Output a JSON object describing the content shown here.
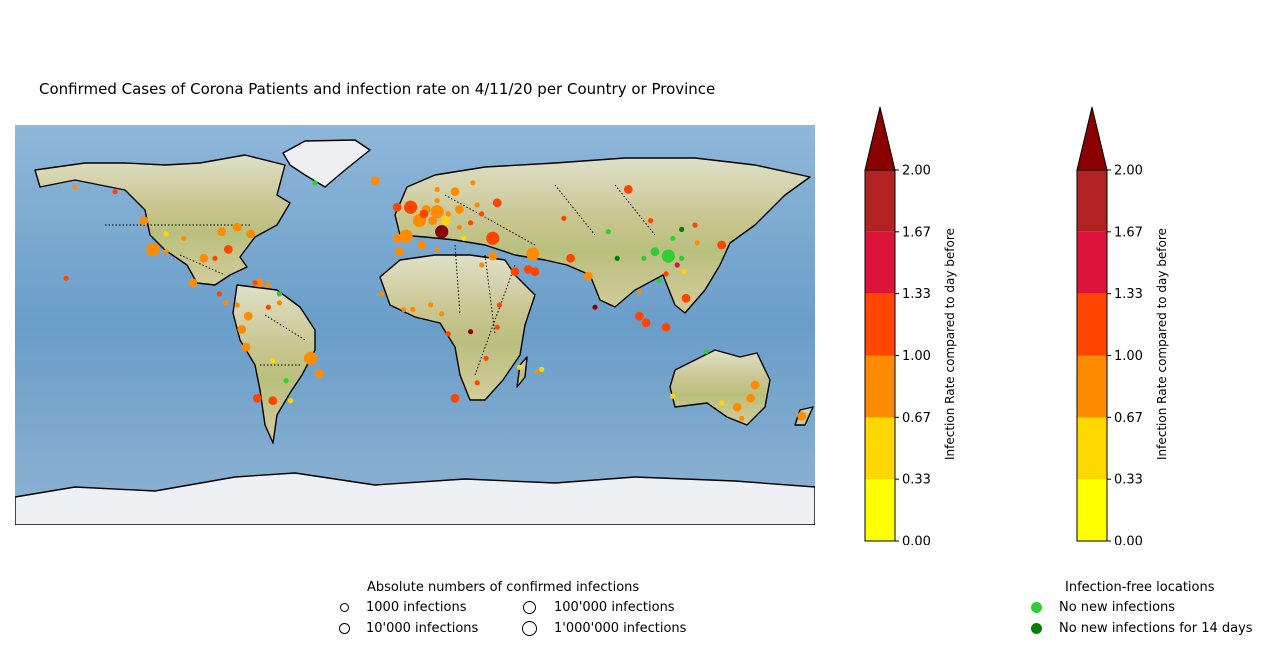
{
  "title": "Confirmed Cases of Corona Patients and infection rate on 4/11/20 per Country or Province",
  "chart_data": {
    "type": "scatter",
    "projection": "equirectangular",
    "xlim": [
      -180,
      180
    ],
    "ylim": [
      -90,
      90
    ],
    "basemap": "stock image with coastlines and dotted country borders",
    "colorbar": {
      "label": "Infection Rate compared to day before",
      "ticks": [
        "0.00",
        "0.33",
        "0.67",
        "1.00",
        "1.33",
        "1.67",
        "2.00"
      ],
      "range": [
        0,
        2
      ],
      "extend": "max",
      "colors": [
        "#ffff00",
        "#ffd700",
        "#ff8c00",
        "#ff4500",
        "#dc143c",
        "#b22222",
        "#8b0000"
      ]
    },
    "colorbar_count": 2,
    "points": [
      {
        "lon": -118,
        "lat": 34,
        "size": "large",
        "color": "#ff8c00"
      },
      {
        "lon": -74,
        "lat": 41,
        "size": "medium",
        "color": "#ff8c00"
      },
      {
        "lon": -87,
        "lat": 42,
        "size": "medium",
        "color": "#ff8c00"
      },
      {
        "lon": -122,
        "lat": 47,
        "size": "medium",
        "color": "#ff8c00"
      },
      {
        "lon": -80,
        "lat": 44,
        "size": "medium",
        "color": "#ff8c00"
      },
      {
        "lon": -95,
        "lat": 30,
        "size": "medium",
        "color": "#ff8c00"
      },
      {
        "lon": -84,
        "lat": 34,
        "size": "medium",
        "color": "#ff4500"
      },
      {
        "lon": -90,
        "lat": 30,
        "size": "small",
        "color": "#ff4500"
      },
      {
        "lon": -104,
        "lat": 39,
        "size": "small",
        "color": "#ff8c00"
      },
      {
        "lon": -112,
        "lat": 33,
        "size": "small",
        "color": "#ff8c00"
      },
      {
        "lon": -112,
        "lat": 41,
        "size": "small",
        "color": "#ffd700"
      },
      {
        "lon": -100,
        "lat": 19,
        "size": "medium",
        "color": "#ff8c00"
      },
      {
        "lon": -66,
        "lat": 18,
        "size": "small",
        "color": "#ff8c00"
      },
      {
        "lon": -70,
        "lat": 19,
        "size": "medium",
        "color": "#ff8c00"
      },
      {
        "lon": -75,
        "lat": 4,
        "size": "medium",
        "color": "#ff8c00"
      },
      {
        "lon": -78,
        "lat": -2,
        "size": "medium",
        "color": "#ff8c00"
      },
      {
        "lon": -76,
        "lat": -10,
        "size": "medium",
        "color": "#ff8c00"
      },
      {
        "lon": -66,
        "lat": 8,
        "size": "small",
        "color": "#ff4500"
      },
      {
        "lon": -47,
        "lat": -15,
        "size": "large",
        "color": "#ff8c00"
      },
      {
        "lon": -43,
        "lat": -22,
        "size": "medium",
        "color": "#ff8c00"
      },
      {
        "lon": -64,
        "lat": -34,
        "size": "medium",
        "color": "#ff4500"
      },
      {
        "lon": -71,
        "lat": -33,
        "size": "medium",
        "color": "#ff4500"
      },
      {
        "lon": -56,
        "lat": -34,
        "size": "small",
        "color": "#ffd700"
      },
      {
        "lon": -64,
        "lat": -16,
        "size": "small",
        "color": "#ffd700"
      },
      {
        "lon": -58,
        "lat": -25,
        "size": "small",
        "color": "#32cd32"
      },
      {
        "lon": -85,
        "lat": 10,
        "size": "small",
        "color": "#ff8c00"
      },
      {
        "lon": -88,
        "lat": 14,
        "size": "small",
        "color": "#ff4500"
      },
      {
        "lon": -80,
        "lat": 9,
        "size": "small",
        "color": "#ff8c00"
      },
      {
        "lon": -61,
        "lat": 14,
        "size": "small",
        "color": "#32cd32"
      },
      {
        "lon": -153,
        "lat": 62,
        "size": "small",
        "color": "#ff8c00"
      },
      {
        "lon": -135,
        "lat": 60,
        "size": "small",
        "color": "#ff4500"
      },
      {
        "lon": -45,
        "lat": 64,
        "size": "small",
        "color": "#32cd32"
      },
      {
        "lon": -18,
        "lat": 65,
        "size": "medium",
        "color": "#ff8c00"
      },
      {
        "lon": -4,
        "lat": 40,
        "size": "large",
        "color": "#ff8c00"
      },
      {
        "lon": 12,
        "lat": 42,
        "size": "large",
        "color": "#8b0000"
      },
      {
        "lon": 2,
        "lat": 47,
        "size": "large",
        "color": "#ff8c00"
      },
      {
        "lon": 10,
        "lat": 51,
        "size": "large",
        "color": "#ff8c00"
      },
      {
        "lon": -2,
        "lat": 53,
        "size": "large",
        "color": "#ff4500"
      },
      {
        "lon": 5,
        "lat": 52,
        "size": "medium",
        "color": "#ff8c00"
      },
      {
        "lon": 8,
        "lat": 47,
        "size": "medium",
        "color": "#ff8c00"
      },
      {
        "lon": 4,
        "lat": 50,
        "size": "medium",
        "color": "#ff4500"
      },
      {
        "lon": 14,
        "lat": 47,
        "size": "medium",
        "color": "#ffd700"
      },
      {
        "lon": 18,
        "lat": 60,
        "size": "medium",
        "color": "#ff8c00"
      },
      {
        "lon": 10,
        "lat": 61,
        "size": "small",
        "color": "#ff8c00"
      },
      {
        "lon": 26,
        "lat": 64,
        "size": "small",
        "color": "#ff8c00"
      },
      {
        "lon": 10,
        "lat": 56,
        "size": "small",
        "color": "#ff8c00"
      },
      {
        "lon": 20,
        "lat": 52,
        "size": "medium",
        "color": "#ff8c00"
      },
      {
        "lon": 15,
        "lat": 50,
        "size": "small",
        "color": "#ff8c00"
      },
      {
        "lon": -8,
        "lat": 39,
        "size": "medium",
        "color": "#ff8c00"
      },
      {
        "lon": -8,
        "lat": 53,
        "size": "medium",
        "color": "#ff4500"
      },
      {
        "lon": 25,
        "lat": 46,
        "size": "small",
        "color": "#ff4500"
      },
      {
        "lon": 22,
        "lat": 39,
        "size": "small",
        "color": "#ffd700"
      },
      {
        "lon": 20,
        "lat": 44,
        "size": "small",
        "color": "#ff8c00"
      },
      {
        "lon": 35,
        "lat": 39,
        "size": "large",
        "color": "#ff4500"
      },
      {
        "lon": 37,
        "lat": 55,
        "size": "medium",
        "color": "#ff4500"
      },
      {
        "lon": 30,
        "lat": 50,
        "size": "small",
        "color": "#ff4500"
      },
      {
        "lon": 28,
        "lat": 54,
        "size": "small",
        "color": "#ff8c00"
      },
      {
        "lon": 53,
        "lat": 32,
        "size": "large",
        "color": "#ff8c00"
      },
      {
        "lon": 45,
        "lat": 24,
        "size": "medium",
        "color": "#ff4500"
      },
      {
        "lon": 54,
        "lat": 24,
        "size": "medium",
        "color": "#ff4500"
      },
      {
        "lon": 51,
        "lat": 25,
        "size": "medium",
        "color": "#ff4500"
      },
      {
        "lon": 35,
        "lat": 31,
        "size": "medium",
        "color": "#ff8c00"
      },
      {
        "lon": 30,
        "lat": 27,
        "size": "small",
        "color": "#ff8c00"
      },
      {
        "lon": 70,
        "lat": 30,
        "size": "medium",
        "color": "#ff4500"
      },
      {
        "lon": 78,
        "lat": 22,
        "size": "medium",
        "color": "#ff8c00"
      },
      {
        "lon": 67,
        "lat": 48,
        "size": "small",
        "color": "#ff4500"
      },
      {
        "lon": 96,
        "lat": 61,
        "size": "medium",
        "color": "#ff4500"
      },
      {
        "lon": 81,
        "lat": 8,
        "size": "small",
        "color": "#8b0000"
      },
      {
        "lon": 101,
        "lat": 4,
        "size": "medium",
        "color": "#ff4500"
      },
      {
        "lon": 104,
        "lat": 1,
        "size": "medium",
        "color": "#ff4500"
      },
      {
        "lon": 101,
        "lat": 15,
        "size": "small",
        "color": "#ff8c00"
      },
      {
        "lon": 113,
        "lat": -1,
        "size": "medium",
        "color": "#ff4500"
      },
      {
        "lon": 122,
        "lat": 12,
        "size": "medium",
        "color": "#ff4500"
      },
      {
        "lon": 138,
        "lat": 36,
        "size": "medium",
        "color": "#ff4500"
      },
      {
        "lon": 127,
        "lat": 37,
        "size": "small",
        "color": "#ff8c00"
      },
      {
        "lon": 121,
        "lat": 24,
        "size": "small",
        "color": "#ffd700"
      },
      {
        "lon": 114,
        "lat": 31,
        "size": "large",
        "color": "#32cd32"
      },
      {
        "lon": 108,
        "lat": 33,
        "size": "medium",
        "color": "#32cd32"
      },
      {
        "lon": 116,
        "lat": 39,
        "size": "small",
        "color": "#32cd32"
      },
      {
        "lon": 120,
        "lat": 30,
        "size": "small",
        "color": "#32cd32"
      },
      {
        "lon": 113,
        "lat": 23,
        "size": "small",
        "color": "#ff4500"
      },
      {
        "lon": 103,
        "lat": 30,
        "size": "small",
        "color": "#32cd32"
      },
      {
        "lon": 126,
        "lat": 45,
        "size": "small",
        "color": "#ff4500"
      },
      {
        "lon": 91,
        "lat": 30,
        "size": "small",
        "color": "#008000"
      },
      {
        "lon": 87,
        "lat": 42,
        "size": "small",
        "color": "#32cd32"
      },
      {
        "lon": 106,
        "lat": 47,
        "size": "small",
        "color": "#ff4500"
      },
      {
        "lon": 120,
        "lat": 43,
        "size": "small",
        "color": "#008000"
      },
      {
        "lon": 110,
        "lat": 20,
        "size": "small",
        "color": "#32cd32"
      },
      {
        "lon": 118,
        "lat": 27,
        "size": "small",
        "color": "#dc143c"
      },
      {
        "lon": 145,
        "lat": -37,
        "size": "medium",
        "color": "#ff8c00"
      },
      {
        "lon": 151,
        "lat": -33,
        "size": "medium",
        "color": "#ff8c00"
      },
      {
        "lon": 153,
        "lat": -27,
        "size": "medium",
        "color": "#ff8c00"
      },
      {
        "lon": 116,
        "lat": -32,
        "size": "small",
        "color": "#ffd700"
      },
      {
        "lon": 138,
        "lat": -35,
        "size": "small",
        "color": "#ffd700"
      },
      {
        "lon": 147,
        "lat": -42,
        "size": "small",
        "color": "#ff8c00"
      },
      {
        "lon": 131,
        "lat": -12,
        "size": "small",
        "color": "#32cd32"
      },
      {
        "lon": 174,
        "lat": -41,
        "size": "medium",
        "color": "#ff8c00"
      },
      {
        "lon": 18,
        "lat": -33,
        "size": "medium",
        "color": "#ff4500"
      },
      {
        "lon": 28,
        "lat": -26,
        "size": "small",
        "color": "#ff4500"
      },
      {
        "lon": 3,
        "lat": 36,
        "size": "medium",
        "color": "#ff8c00"
      },
      {
        "lon": -7,
        "lat": 33,
        "size": "medium",
        "color": "#ff8c00"
      },
      {
        "lon": 10,
        "lat": 34,
        "size": "small",
        "color": "#ff8c00"
      },
      {
        "lon": 7,
        "lat": 9,
        "size": "small",
        "color": "#ff8c00"
      },
      {
        "lon": -1,
        "lat": 7,
        "size": "small",
        "color": "#ff8c00"
      },
      {
        "lon": -5,
        "lat": 7,
        "size": "small",
        "color": "#ff8c00"
      },
      {
        "lon": -15,
        "lat": 14,
        "size": "small",
        "color": "#ff8c00"
      },
      {
        "lon": 12,
        "lat": 5,
        "size": "small",
        "color": "#ff8c00"
      },
      {
        "lon": 38,
        "lat": 9,
        "size": "small",
        "color": "#ff4500"
      },
      {
        "lon": 37,
        "lat": -1,
        "size": "small",
        "color": "#ff4500"
      },
      {
        "lon": 57,
        "lat": -20,
        "size": "small",
        "color": "#ffd700"
      },
      {
        "lon": 55,
        "lat": -21,
        "size": "small",
        "color": "#ff8c00"
      },
      {
        "lon": 47,
        "lat": -19,
        "size": "small",
        "color": "#ffd700"
      },
      {
        "lon": 15,
        "lat": -4,
        "size": "small",
        "color": "#ff4500"
      },
      {
        "lon": 32,
        "lat": -15,
        "size": "small",
        "color": "#ff4500"
      },
      {
        "lon": 25,
        "lat": -3,
        "size": "small",
        "color": "#8b0000"
      },
      {
        "lon": -61,
        "lat": 10,
        "size": "small",
        "color": "#ff8c00"
      },
      {
        "lon": -72,
        "lat": 19,
        "size": "small",
        "color": "#ff4500"
      },
      {
        "lon": -157,
        "lat": 21,
        "size": "small",
        "color": "#ff4500"
      }
    ]
  },
  "legend_sizes": {
    "title": "Absolute numbers of confirmed infections",
    "items": [
      {
        "label": "1000 infections"
      },
      {
        "label": "10'000 infections"
      },
      {
        "label": "100'000 infections"
      },
      {
        "label": "1'000'000 infections"
      }
    ]
  },
  "legend_free": {
    "title": "Infection-free locations",
    "items": [
      {
        "label": "No new infections",
        "color": "#32cd32"
      },
      {
        "label": "No new infections for 14 days",
        "color": "#008000"
      }
    ]
  }
}
